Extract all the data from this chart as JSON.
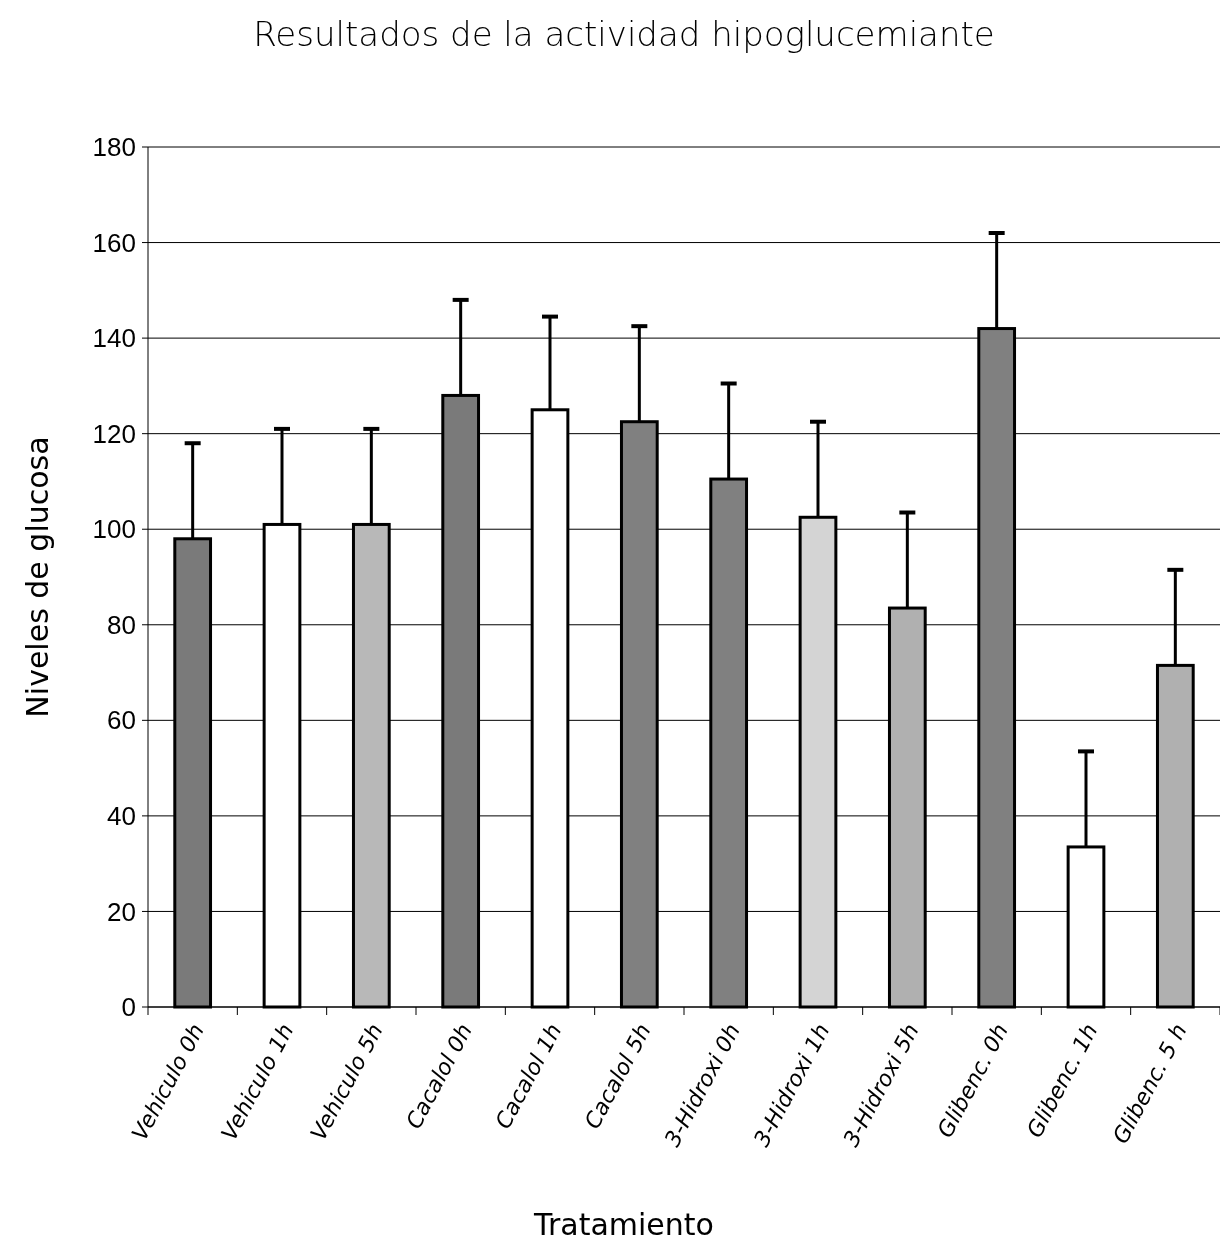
{
  "chart_data": {
    "type": "bar",
    "title": "Resultados de la actividad hipoglucemiante",
    "xlabel": "Tratamiento",
    "ylabel": "Niveles de glucosa",
    "categories": [
      "Vehiculo 0h",
      "Vehiculo 1h",
      "Vehiculo 5h",
      "Cacalol 0h",
      "Cacalol 1h",
      "Cacalol 5h",
      "3-Hidroxi 0h",
      "3-Hidroxi 1h",
      "3-Hidroxi 5h",
      "Glibenc. 0h",
      "Glibenc. 1h",
      "Glibenc. 5 h"
    ],
    "values": [
      98,
      101,
      101,
      128,
      125,
      122.5,
      110.5,
      102.5,
      83.5,
      142,
      33.5,
      71.5
    ],
    "errors": [
      [
        98,
        118
      ],
      [
        101,
        121
      ],
      [
        101,
        121
      ],
      [
        128,
        148
      ],
      [
        125,
        144.5
      ],
      [
        122.5,
        142.5
      ],
      [
        110.5,
        130.5
      ],
      [
        102.5,
        122.5
      ],
      [
        83.5,
        103.5
      ],
      [
        142,
        162
      ],
      [
        33.5,
        53.5
      ],
      [
        71.5,
        91.5
      ]
    ],
    "colors": [
      "#7a7a7a",
      "#ffffff",
      "#b8b8b8",
      "#7a7a7a",
      "#ffffff",
      "#808080",
      "#808080",
      "#d4d4d4",
      "#b0b0b0",
      "#808080",
      "#ffffff",
      "#b0b0b0"
    ],
    "ylim": [
      0,
      180
    ],
    "yticks": [
      0,
      20,
      40,
      60,
      80,
      100,
      120,
      140,
      160,
      180
    ],
    "grid": "y"
  }
}
